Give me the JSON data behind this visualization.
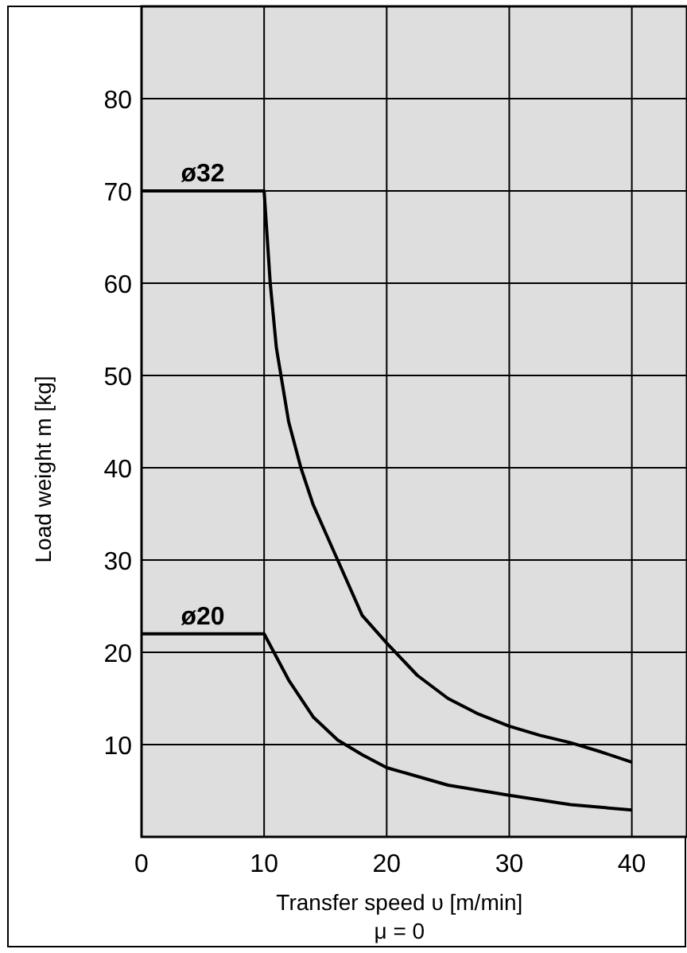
{
  "chart_data": {
    "type": "line",
    "xlabel": "Transfer speed υ [m/min]",
    "ylabel": "Load weight m [kg]",
    "xlim": [
      0,
      44.5
    ],
    "ylim": [
      0,
      90
    ],
    "xticks": [
      0,
      10,
      20,
      30,
      40
    ],
    "yticks": [
      10,
      20,
      30,
      40,
      50,
      60,
      70,
      80
    ],
    "grid": true,
    "marker": "none",
    "line_style": "solid",
    "series": [
      {
        "color": "#000000",
        "x": [
          0,
          10,
          10.5,
          11,
          12,
          13,
          14,
          15,
          16,
          18,
          20,
          22.5,
          25,
          27.5,
          30,
          32.5,
          35,
          37.5,
          40
        ],
        "values": [
          70,
          70,
          60,
          53,
          45,
          40,
          36,
          33,
          30,
          24,
          21,
          17.5,
          15,
          13.3,
          12,
          11,
          10.2,
          9.2,
          8.1
        ]
      },
      {
        "color": "#000000",
        "x": [
          0,
          10,
          12,
          14,
          16,
          18,
          20,
          25,
          30,
          35,
          40
        ],
        "values": [
          22,
          22,
          17,
          13,
          10.5,
          8.9,
          7.5,
          5.6,
          4.5,
          3.5,
          2.9
        ]
      }
    ],
    "annotations": [
      {
        "text": "ø32",
        "x": 5,
        "y": 70
      },
      {
        "text": "ø20",
        "x": 5,
        "y": 22
      },
      "μ = 0"
    ]
  }
}
